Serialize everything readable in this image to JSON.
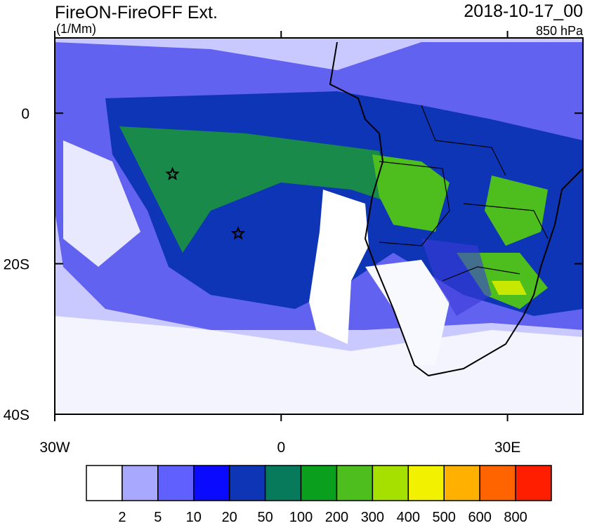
{
  "header": {
    "title": "FireON-FireOFF Ext.",
    "units": "(1/Mm)",
    "date": "2018-10-17_00",
    "level": "850 hPa"
  },
  "map": {
    "lonlim": [
      -30,
      40
    ],
    "latlim": [
      -40,
      10
    ],
    "lat_ticks": [
      {
        "value": 0,
        "label": "0"
      },
      {
        "value": -20,
        "label": "20S"
      },
      {
        "value": -40,
        "label": "40S"
      }
    ],
    "lon_ticks": [
      {
        "value": -30,
        "label": "30W"
      },
      {
        "value": 0,
        "label": "0"
      },
      {
        "value": 30,
        "label": "30E"
      }
    ],
    "markers": [
      {
        "lon": -14.4,
        "lat": -8.1
      },
      {
        "lon": -5.7,
        "lat": -16.0
      }
    ]
  },
  "colorbar": {
    "levels": [
      2,
      5,
      10,
      20,
      50,
      100,
      200,
      300,
      400,
      500,
      600,
      800
    ],
    "colors": [
      "#ffffff",
      "#a8a8ff",
      "#6060ff",
      "#0a0aff",
      "#0e35b5",
      "#087a5c",
      "#0aa01e",
      "#4ebe1e",
      "#a6e000",
      "#f2f200",
      "#ffb000",
      "#ff6400",
      "#ff1e00"
    ]
  }
}
